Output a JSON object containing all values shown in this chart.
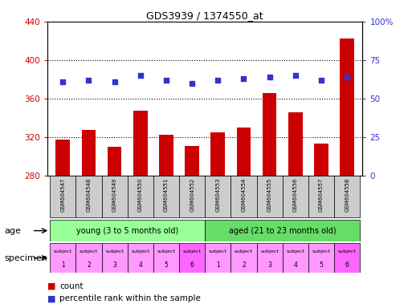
{
  "title": "GDS3939 / 1374550_at",
  "samples": [
    "GSM604547",
    "GSM604548",
    "GSM604549",
    "GSM604550",
    "GSM604551",
    "GSM604552",
    "GSM604553",
    "GSM604554",
    "GSM604555",
    "GSM604556",
    "GSM604557",
    "GSM604558"
  ],
  "counts": [
    317,
    327,
    310,
    347,
    322,
    311,
    325,
    330,
    366,
    346,
    313,
    422
  ],
  "percentiles": [
    61,
    62,
    61,
    65,
    62,
    60,
    62,
    63,
    64,
    65,
    62,
    64
  ],
  "ymin": 280,
  "ymax": 440,
  "yticks": [
    280,
    320,
    360,
    400,
    440
  ],
  "y2ticks": [
    0,
    25,
    50,
    75,
    100
  ],
  "y2labels": [
    "0",
    "25",
    "50",
    "75",
    "100%"
  ],
  "bar_color": "#CC0000",
  "dot_color": "#3333CC",
  "grid_color": "#000000",
  "age_young_color": "#99FF99",
  "age_aged_color": "#66DD66",
  "specimen_light_color": "#FF99FF",
  "specimen_dark_color": "#FF66FF",
  "specimen_dark_indices": [
    5,
    11
  ],
  "age_labels": [
    "young (3 to 5 months old)",
    "aged (21 to 23 months old)"
  ],
  "specimen_numbers": [
    "1",
    "2",
    "3",
    "4",
    "5",
    "6",
    "1",
    "2",
    "3",
    "4",
    "5",
    "6"
  ],
  "xlabel_age": "age",
  "xlabel_specimen": "specimen",
  "legend_count": "count",
  "legend_percentile": "percentile rank within the sample",
  "bg_color": "#FFFFFF",
  "tick_label_color_left": "#CC0000",
  "tick_label_color_right": "#3333CC",
  "cell_color": "#CCCCCC"
}
